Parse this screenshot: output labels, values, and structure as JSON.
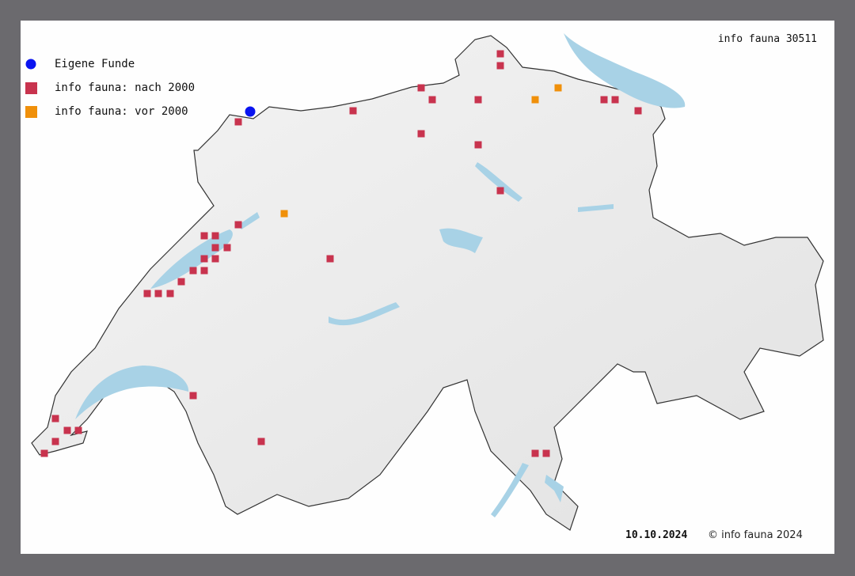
{
  "map_title": "info fauna 30511",
  "legend": [
    {
      "label": "Eigene Funde",
      "shape": "circle",
      "color": "#0a14f0"
    },
    {
      "label": "info fauna: nach 2000",
      "shape": "square",
      "color": "#c8334e"
    },
    {
      "label": "info fauna: vor 2000",
      "shape": "square",
      "color": "#f0900a"
    }
  ],
  "footer": {
    "date": "10.10.2024",
    "copyright": "© info fauna 2024"
  },
  "colors": {
    "background": "#6b6a6e",
    "land": "#eeeeee",
    "water": "#a8d2e6",
    "border": "#333333"
  }
}
